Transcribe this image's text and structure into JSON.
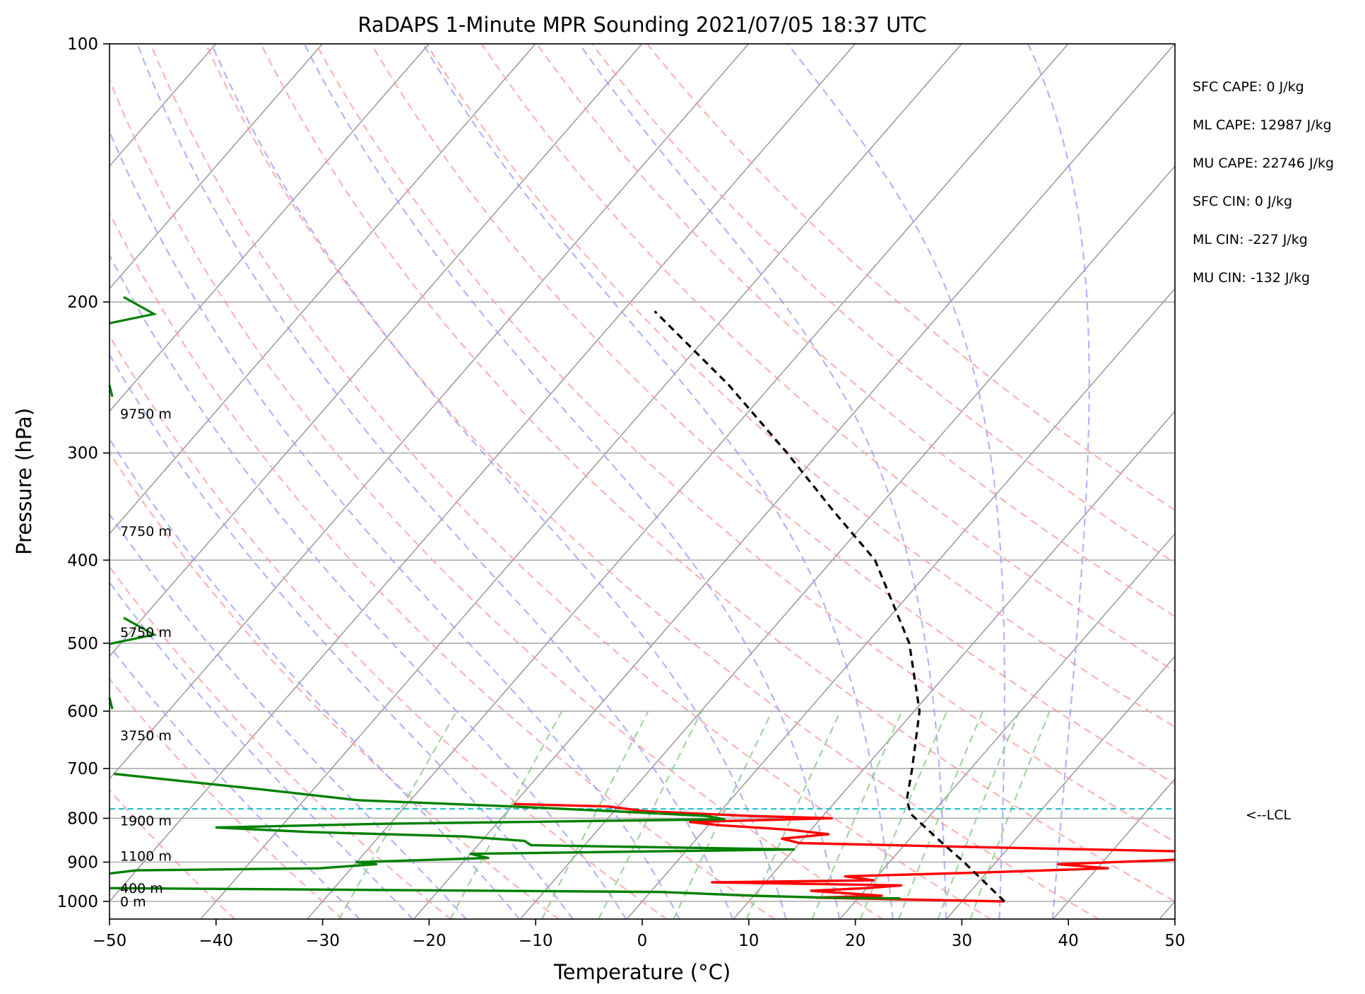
{
  "chart_data": {
    "type": "line",
    "title": "RaDAPS 1-Minute MPR Sounding 2021/07/05 18:37 UTC",
    "xlabel": "Temperature (°C)",
    "ylabel": "Pressure (hPa)",
    "xlim": [
      -50,
      50
    ],
    "ylim": [
      1050,
      100
    ],
    "y_scale": "log",
    "x_ticks": [
      "−50",
      "−40",
      "−30",
      "−20",
      "−10",
      "0",
      "10",
      "20",
      "30",
      "40",
      "50"
    ],
    "y_ticks": [
      "100",
      "200",
      "300",
      "400",
      "500",
      "600",
      "700",
      "800",
      "900",
      "1000"
    ],
    "grid": true,
    "skew": "skew-T log-p",
    "height_labels": [
      {
        "text": "9750 m",
        "p": 270
      },
      {
        "text": "7750 m",
        "p": 370
      },
      {
        "text": "5750 m",
        "p": 485
      },
      {
        "text": "3750 m",
        "p": 640
      },
      {
        "text": "1900 m",
        "p": 805
      },
      {
        "text": "1100 m",
        "p": 885
      },
      {
        "text": "400 m",
        "p": 965
      },
      {
        "text": "0 m",
        "p": 1000
      }
    ],
    "stats": [
      "SFC CAPE: 0 J/kg",
      "ML CAPE: 12987 J/kg",
      "MU CAPE: 22746 J/kg",
      "SFC CIN: 0 J/kg",
      "ML CIN: -227 J/kg",
      "MU CIN: -132 J/kg"
    ],
    "lcl": {
      "label": "<--LCL",
      "p": 780,
      "color": "#17becf"
    },
    "colors": {
      "temperature": "#ff0000",
      "dewpoint": "#008000",
      "parcel": "#000000",
      "dry_adiabat": "#ff9999",
      "moist_adiabat": "#9999ff",
      "mixing_ratio": "#88cc88",
      "isotherm": "#999999"
    },
    "series": [
      {
        "id": "temperature",
        "points": [
          [
            1000,
            34
          ],
          [
            995,
            25
          ],
          [
            990,
            16
          ],
          [
            985,
            22
          ],
          [
            972,
            15
          ],
          [
            965,
            20
          ],
          [
            958,
            23
          ],
          [
            950,
            5
          ],
          [
            945,
            20
          ],
          [
            935,
            17
          ],
          [
            925,
            30
          ],
          [
            915,
            41
          ],
          [
            905,
            36
          ],
          [
            895,
            46
          ],
          [
            885,
            51
          ],
          [
            875,
            48
          ],
          [
            865,
            28
          ],
          [
            855,
            10
          ],
          [
            845,
            8
          ],
          [
            835,
            12
          ],
          [
            825,
            8
          ],
          [
            815,
            1
          ],
          [
            808,
            -2
          ],
          [
            800,
            11
          ],
          [
            795,
            3
          ],
          [
            785,
            -7
          ],
          [
            775,
            -11
          ],
          [
            770,
            -20
          ]
        ]
      },
      {
        "id": "dewpoint",
        "points": [
          [
            992,
            24
          ],
          [
            990,
            17
          ],
          [
            985,
            10
          ],
          [
            975,
            1
          ],
          [
            965,
            -51
          ],
          [
            955,
            -60
          ],
          [
            920,
            -50
          ],
          [
            915,
            -33
          ],
          [
            905,
            -28
          ],
          [
            900,
            -30
          ],
          [
            890,
            -18
          ],
          [
            880,
            -20
          ],
          [
            870,
            10
          ],
          [
            860,
            -15
          ],
          [
            850,
            -16
          ],
          [
            840,
            -22
          ],
          [
            830,
            -37
          ],
          [
            820,
            -46
          ],
          [
            812,
            -31
          ],
          [
            802,
            1
          ],
          [
            795,
            -1
          ],
          [
            785,
            -10
          ],
          [
            775,
            -20
          ],
          [
            762,
            -35
          ],
          [
            740,
            -45
          ],
          [
            720,
            -55
          ],
          [
            710,
            -60
          ]
        ]
      },
      {
        "id": "parcel",
        "points": [
          [
            1000,
            34
          ],
          [
            900,
            27
          ],
          [
            850,
            23
          ],
          [
            790,
            18
          ],
          [
            760,
            16.5
          ],
          [
            700,
            14.5
          ],
          [
            600,
            10.5
          ],
          [
            500,
            4
          ],
          [
            400,
            -6
          ],
          [
            350,
            -14
          ],
          [
            300,
            -23
          ],
          [
            250,
            -34
          ],
          [
            205,
            -47
          ]
        ]
      }
    ],
    "wind_profile": [
      {
        "p": 205,
        "dir": "sw"
      },
      {
        "p": 255,
        "dir": "s"
      },
      {
        "p": 485,
        "dir": "sw"
      },
      {
        "p": 590,
        "dir": "s"
      }
    ]
  }
}
